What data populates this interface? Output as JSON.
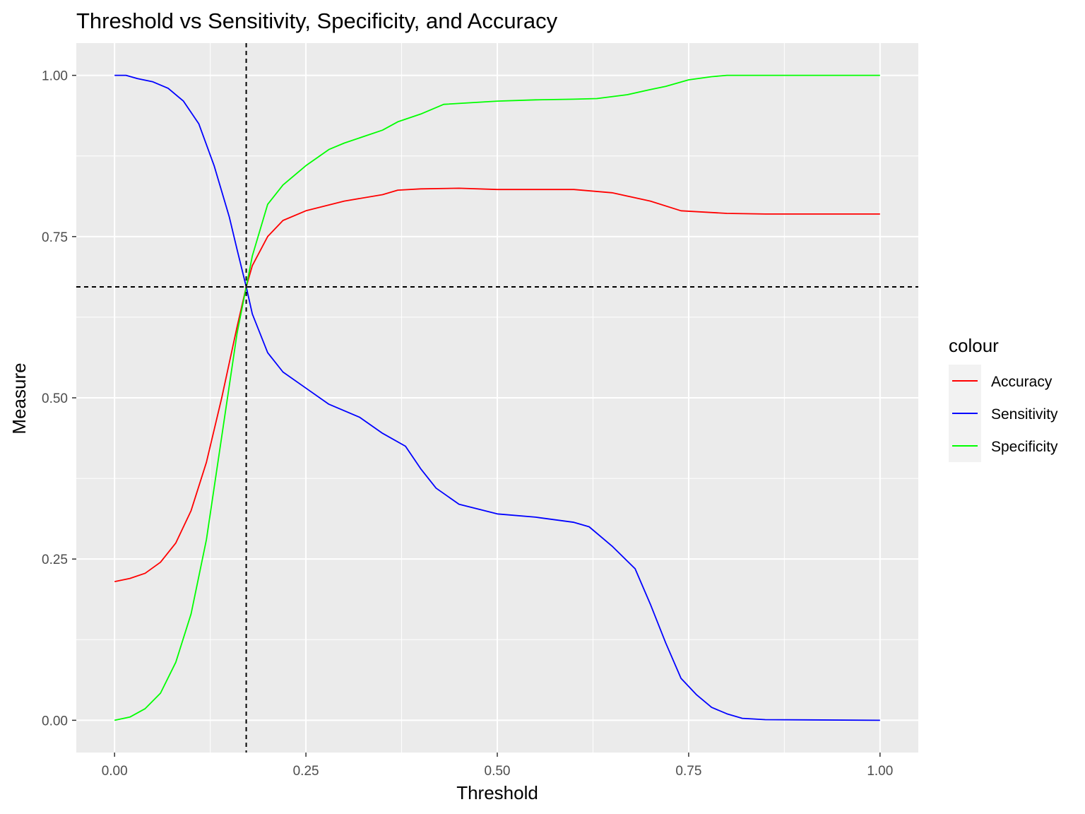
{
  "chart_data": {
    "type": "line",
    "title": "Threshold vs Sensitivity, Specificity, and Accuracy",
    "xlabel": "Threshold",
    "ylabel": "Measure",
    "xlim": [
      -0.05,
      1.05
    ],
    "ylim": [
      -0.05,
      1.05
    ],
    "x_ticks": [
      0,
      0.25,
      0.5,
      0.75,
      1
    ],
    "x_tick_labels": [
      "0.00",
      "0.25",
      "0.50",
      "0.75",
      "1.00"
    ],
    "y_ticks": [
      0,
      0.25,
      0.5,
      0.75,
      1
    ],
    "y_tick_labels": [
      "0.00",
      "0.25",
      "0.50",
      "0.75",
      "1.00"
    ],
    "grid": true,
    "legend": {
      "title": "colour",
      "placement": "right"
    },
    "reference_lines": {
      "vertical_x": 0.172,
      "horizontal_y": 0.672,
      "style": "dashed",
      "color": "#000000"
    },
    "colors": {
      "panel": "#ebebeb",
      "grid": "#ffffff"
    },
    "series": [
      {
        "name": "Accuracy",
        "color": "#ff0000",
        "x": [
          0,
          0.02,
          0.04,
          0.06,
          0.08,
          0.1,
          0.12,
          0.14,
          0.16,
          0.172,
          0.18,
          0.2,
          0.22,
          0.25,
          0.3,
          0.35,
          0.37,
          0.4,
          0.45,
          0.5,
          0.55,
          0.6,
          0.65,
          0.7,
          0.74,
          0.8,
          0.85,
          1
        ],
        "values": [
          0.215,
          0.22,
          0.228,
          0.245,
          0.275,
          0.325,
          0.4,
          0.5,
          0.61,
          0.672,
          0.705,
          0.75,
          0.775,
          0.79,
          0.805,
          0.815,
          0.822,
          0.824,
          0.825,
          0.823,
          0.823,
          0.823,
          0.818,
          0.805,
          0.79,
          0.786,
          0.785,
          0.785
        ]
      },
      {
        "name": "Sensitivity",
        "color": "#0000ff",
        "x": [
          0,
          0.015,
          0.03,
          0.05,
          0.07,
          0.09,
          0.11,
          0.13,
          0.15,
          0.16,
          0.172,
          0.18,
          0.2,
          0.22,
          0.25,
          0.28,
          0.32,
          0.35,
          0.38,
          0.4,
          0.42,
          0.45,
          0.5,
          0.55,
          0.6,
          0.62,
          0.65,
          0.68,
          0.7,
          0.72,
          0.74,
          0.76,
          0.78,
          0.8,
          0.82,
          0.85,
          1
        ],
        "values": [
          1.0,
          1.0,
          0.995,
          0.99,
          0.98,
          0.96,
          0.925,
          0.86,
          0.78,
          0.73,
          0.672,
          0.63,
          0.57,
          0.54,
          0.515,
          0.49,
          0.47,
          0.445,
          0.425,
          0.39,
          0.36,
          0.335,
          0.32,
          0.315,
          0.307,
          0.3,
          0.27,
          0.235,
          0.18,
          0.12,
          0.065,
          0.04,
          0.02,
          0.01,
          0.003,
          0.001,
          0.0
        ]
      },
      {
        "name": "Specificity",
        "color": "#00ff00",
        "x": [
          0,
          0.02,
          0.04,
          0.06,
          0.08,
          0.1,
          0.12,
          0.14,
          0.16,
          0.172,
          0.18,
          0.2,
          0.22,
          0.25,
          0.28,
          0.3,
          0.35,
          0.37,
          0.4,
          0.43,
          0.5,
          0.55,
          0.6,
          0.63,
          0.67,
          0.7,
          0.72,
          0.75,
          0.78,
          0.8,
          0.85,
          1
        ],
        "values": [
          0.0,
          0.005,
          0.018,
          0.042,
          0.09,
          0.165,
          0.28,
          0.44,
          0.6,
          0.672,
          0.72,
          0.8,
          0.83,
          0.86,
          0.885,
          0.895,
          0.915,
          0.928,
          0.94,
          0.955,
          0.96,
          0.962,
          0.963,
          0.964,
          0.97,
          0.978,
          0.983,
          0.993,
          0.998,
          1.0,
          1.0,
          1.0
        ]
      }
    ]
  }
}
